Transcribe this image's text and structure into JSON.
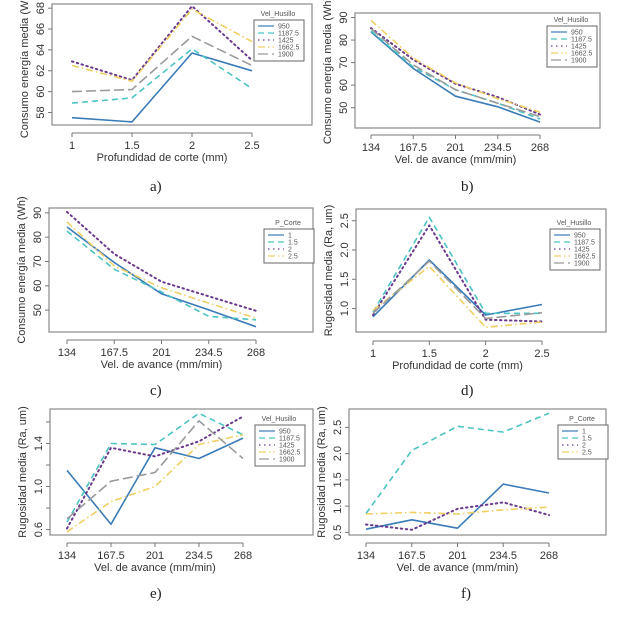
{
  "chart_data": [
    {
      "id": "a",
      "type": "line",
      "caption": "a)",
      "xlabel": "Profundidad de corte (mm)",
      "ylabel": "Consumo energía media (Wh)",
      "x": [
        1,
        1.5,
        2,
        2.5
      ],
      "x_tick_labels": [
        "1",
        "1.5",
        "2",
        "2.5"
      ],
      "ylim": [
        56.8,
        68.4
      ],
      "y_ticks": [
        58,
        60,
        62,
        64,
        66,
        68
      ],
      "y_tick_labels": [
        "58",
        "60",
        "62",
        "64",
        "66",
        "68"
      ],
      "legend": {
        "title": "Vel_Husillo",
        "placement": "top-right"
      },
      "series": [
        {
          "name": "950",
          "style": "solid",
          "color": "#3a7bb8",
          "values": [
            57.5,
            57.1,
            63.7,
            62.0
          ]
        },
        {
          "name": "1187.5",
          "style": "dashed",
          "color": "#4cc3c3",
          "values": [
            58.9,
            59.4,
            64.1,
            60.3
          ]
        },
        {
          "name": "1425",
          "style": "dotted",
          "color": "#6b3a8e",
          "values": [
            62.9,
            61.1,
            68.2,
            63.0
          ]
        },
        {
          "name": "1662.5",
          "style": "dashdot",
          "color": "#f0cf62",
          "values": [
            62.5,
            61.0,
            67.9,
            64.8
          ]
        },
        {
          "name": "1900",
          "style": "longdash",
          "color": "#9a9a9a",
          "values": [
            60.0,
            60.2,
            65.3,
            62.5
          ]
        }
      ]
    },
    {
      "id": "b",
      "type": "line",
      "caption": "b)",
      "xlabel": "Vel. de avance (mm/min)",
      "ylabel": "Consumo energía media (Wh)",
      "x": [
        134,
        167.5,
        201,
        234.5,
        268
      ],
      "x_tick_labels": [
        "134",
        "167.5",
        "201",
        "234.5",
        "268"
      ],
      "ylim": [
        41,
        92
      ],
      "y_ticks": [
        50,
        60,
        70,
        80,
        90
      ],
      "y_tick_labels": [
        "50",
        "60",
        "70",
        "80",
        "90"
      ],
      "legend": {
        "title": "Vel_Husillo",
        "placement": "top-right"
      },
      "series": [
        {
          "name": "950",
          "style": "solid",
          "color": "#3a7bb8",
          "values": [
            83.6,
            67.4,
            55.1,
            50.4,
            43.6
          ]
        },
        {
          "name": "1187.5",
          "style": "dashed",
          "color": "#4cc3c3",
          "values": [
            84.0,
            68.0,
            58.0,
            52.0,
            45.0
          ]
        },
        {
          "name": "1425",
          "style": "dotted",
          "color": "#6b3a8e",
          "values": [
            85.3,
            71.3,
            60.6,
            54.7,
            47.0
          ]
        },
        {
          "name": "1662.5",
          "style": "dashdot",
          "color": "#f0cf62",
          "values": [
            88.7,
            72.0,
            61.0,
            54.0,
            48.0
          ]
        },
        {
          "name": "1900",
          "style": "longdash",
          "color": "#9a9a9a",
          "values": [
            85.0,
            69.0,
            58.0,
            52.0,
            46.0
          ]
        }
      ]
    },
    {
      "id": "c",
      "type": "line",
      "caption": "c)",
      "xlabel": "Vel. de avance (mm/min)",
      "ylabel": "Consumo energía media (Wh)",
      "x": [
        134,
        167.5,
        201,
        234.5,
        268
      ],
      "x_tick_labels": [
        "134",
        "167.5",
        "201",
        "234.5",
        "268"
      ],
      "ylim": [
        41,
        92
      ],
      "y_ticks": [
        50,
        60,
        70,
        80,
        90
      ],
      "y_tick_labels": [
        "50",
        "60",
        "70",
        "80",
        "90"
      ],
      "legend": {
        "title": "P_Corte",
        "placement": "top-right"
      },
      "series": [
        {
          "name": "1",
          "style": "solid",
          "color": "#3a7bb8",
          "values": [
            84.2,
            69.6,
            56.7,
            50.1,
            43.2
          ]
        },
        {
          "name": "1.5",
          "style": "dashed",
          "color": "#4cc3c3",
          "values": [
            82.5,
            66.8,
            57.5,
            47.4,
            46.0
          ]
        },
        {
          "name": "2",
          "style": "dotted",
          "color": "#6b3a8e",
          "values": [
            90.4,
            73.1,
            61.7,
            55.7,
            49.7
          ]
        },
        {
          "name": "2.5",
          "style": "dashdot",
          "color": "#f0cf62",
          "values": [
            86.3,
            68.2,
            59.2,
            52.9,
            46.7
          ]
        }
      ]
    },
    {
      "id": "d",
      "type": "line",
      "caption": "d)",
      "xlabel": "Profundidad de corte (mm)",
      "ylabel": "Rugosidad media (Ra, um)",
      "x": [
        1,
        1.5,
        2,
        2.5
      ],
      "x_tick_labels": [
        "1",
        "1.5",
        "2",
        "2.5"
      ],
      "ylim": [
        0.6,
        2.7
      ],
      "y_ticks": [
        1.0,
        1.5,
        2.0,
        2.5
      ],
      "y_tick_labels": [
        "1.0",
        "1.5",
        "2.0",
        "2.5"
      ],
      "legend": {
        "title": "Vel_Husillo",
        "placement": "top-right"
      },
      "series": [
        {
          "name": "950",
          "style": "solid",
          "color": "#3a7bb8",
          "values": [
            0.86,
            1.83,
            0.89,
            1.07
          ]
        },
        {
          "name": "1187.5",
          "style": "dashed",
          "color": "#4cc3c3",
          "values": [
            0.94,
            2.56,
            0.92,
            0.92
          ]
        },
        {
          "name": "1425",
          "style": "dotted",
          "color": "#6b3a8e",
          "values": [
            0.89,
            2.42,
            0.81,
            0.78
          ]
        },
        {
          "name": "1662.5",
          "style": "dashdot",
          "color": "#f0cf62",
          "values": [
            0.97,
            1.72,
            0.68,
            0.77
          ]
        },
        {
          "name": "1900",
          "style": "longdash",
          "color": "#9a9a9a",
          "values": [
            0.92,
            1.81,
            0.83,
            0.93
          ]
        }
      ]
    },
    {
      "id": "e",
      "type": "line",
      "caption": "e)",
      "xlabel": "Vel. de avance (mm/min)",
      "ylabel": "Rugosidad media (Ra, um)",
      "x": [
        134,
        167.5,
        201,
        234.5,
        268
      ],
      "x_tick_labels": [
        "134",
        "167.5",
        "201",
        "234.5",
        "268"
      ],
      "ylim": [
        0.55,
        1.72
      ],
      "y_ticks": [
        0.6,
        0.8,
        1.0,
        1.2,
        1.4,
        1.6
      ],
      "y_tick_labels": [
        "0.6",
        "",
        "1.0",
        "",
        "1.4",
        ""
      ],
      "legend": {
        "title": "Vel_Husillo",
        "placement": "top-right"
      },
      "series": [
        {
          "name": "950",
          "style": "solid",
          "color": "#3a7bb8",
          "values": [
            1.15,
            0.65,
            1.36,
            1.26,
            1.45
          ]
        },
        {
          "name": "1187.5",
          "style": "dashed",
          "color": "#4cc3c3",
          "values": [
            0.67,
            1.4,
            1.39,
            1.68,
            1.48
          ]
        },
        {
          "name": "1425",
          "style": "dotted",
          "color": "#6b3a8e",
          "values": [
            0.61,
            1.36,
            1.28,
            1.42,
            1.65
          ]
        },
        {
          "name": "1662.5",
          "style": "dashdot",
          "color": "#f0cf62",
          "values": [
            0.58,
            0.86,
            1.0,
            1.39,
            1.48
          ]
        },
        {
          "name": "1900",
          "style": "longdash",
          "color": "#9a9a9a",
          "values": [
            0.7,
            1.05,
            1.13,
            1.61,
            1.26
          ]
        }
      ]
    },
    {
      "id": "f",
      "type": "line",
      "caption": "f)",
      "xlabel": "Vel. de avance (mm/min)",
      "ylabel": "Rugosidad media (Ra, um)",
      "x": [
        134,
        167.5,
        201,
        234.5,
        268
      ],
      "x_tick_labels": [
        "134",
        "167.5",
        "201",
        "234.5",
        "268"
      ],
      "ylim": [
        0.45,
        2.85
      ],
      "y_ticks": [
        0.5,
        1.0,
        1.5,
        2.0,
        2.5
      ],
      "y_tick_labels": [
        "0.5",
        "1.0",
        "1.5",
        "2.0",
        "2.5"
      ],
      "legend": {
        "title": "P_Corte",
        "placement": "top-right"
      },
      "series": [
        {
          "name": "1",
          "style": "solid",
          "color": "#3a7bb8",
          "values": [
            0.56,
            0.74,
            0.58,
            1.42,
            1.25
          ]
        },
        {
          "name": "1.5",
          "style": "dashed",
          "color": "#4cc3c3",
          "values": [
            0.86,
            2.06,
            2.52,
            2.41,
            2.77
          ]
        },
        {
          "name": "2",
          "style": "dotted",
          "color": "#6b3a8e",
          "values": [
            0.65,
            0.55,
            0.95,
            1.07,
            0.83
          ]
        },
        {
          "name": "2.5",
          "style": "dashdot",
          "color": "#f0cf62",
          "values": [
            0.85,
            0.88,
            0.85,
            0.93,
            0.98
          ]
        }
      ]
    }
  ]
}
